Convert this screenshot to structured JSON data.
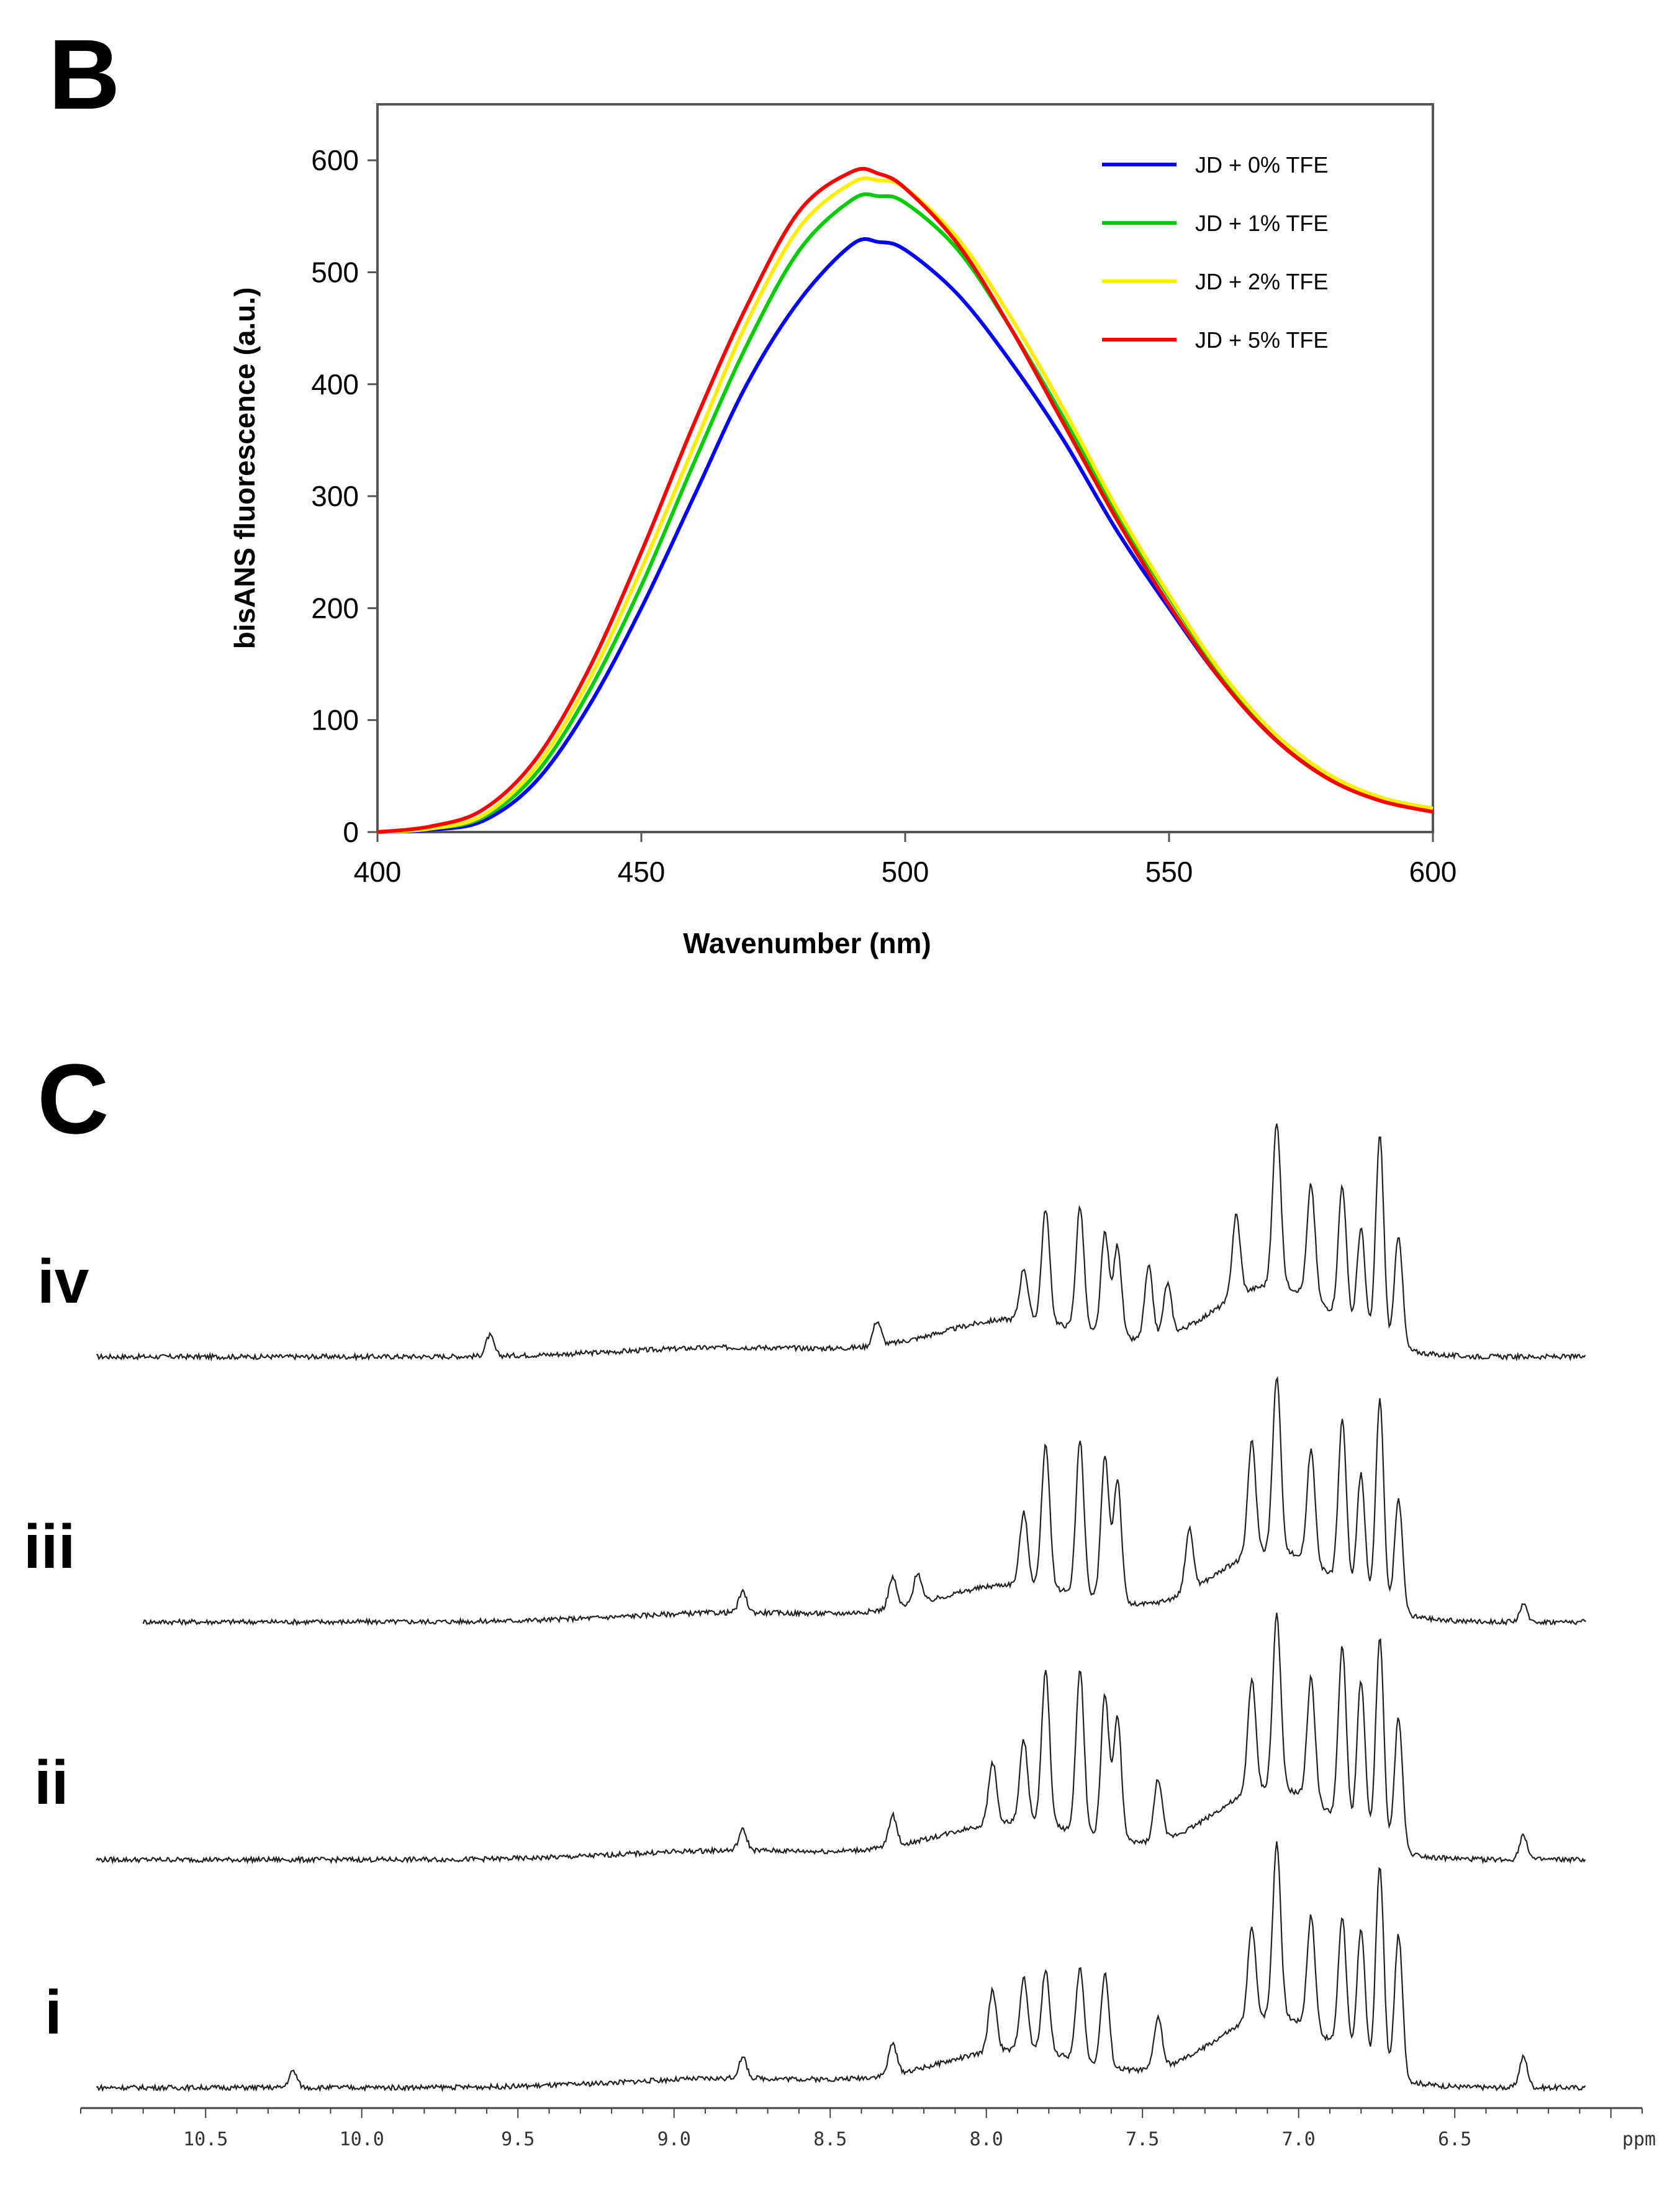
{
  "panels": {
    "b_label": "B",
    "c_label": "C"
  },
  "chart_data": [
    {
      "type": "line",
      "title": "",
      "xlabel": "Wavenumber (nm)",
      "ylabel": "bisANS fluorescence (a.u.)",
      "xlim": [
        400,
        600
      ],
      "ylim": [
        0,
        650
      ],
      "x_ticks": [
        "400",
        "450",
        "500",
        "550",
        "600"
      ],
      "y_ticks": [
        "0",
        "100",
        "200",
        "300",
        "400",
        "500",
        "600"
      ],
      "legend_position": "top-right",
      "series": [
        {
          "name": "JD + 0% TFE",
          "color": "#0000ff",
          "x": [
            400,
            410,
            420,
            430,
            440,
            450,
            460,
            470,
            480,
            490,
            495,
            500,
            510,
            520,
            530,
            540,
            550,
            560,
            570,
            580,
            590,
            600
          ],
          "y": [
            0,
            2,
            10,
            45,
            112,
            200,
            300,
            400,
            475,
            525,
            527,
            520,
            480,
            420,
            350,
            270,
            200,
            135,
            85,
            50,
            30,
            20
          ]
        },
        {
          "name": "JD + 1% TFE",
          "color": "#00cc00",
          "x": [
            400,
            410,
            420,
            430,
            440,
            450,
            460,
            470,
            480,
            490,
            495,
            500,
            510,
            520,
            530,
            540,
            550,
            560,
            570,
            580,
            590,
            600
          ],
          "y": [
            0,
            3,
            13,
            52,
            125,
            220,
            330,
            435,
            520,
            565,
            568,
            562,
            520,
            450,
            370,
            285,
            210,
            140,
            88,
            52,
            31,
            21
          ]
        },
        {
          "name": "JD + 2% TFE",
          "color": "#ffee00",
          "x": [
            400,
            410,
            420,
            430,
            440,
            450,
            460,
            470,
            480,
            490,
            495,
            500,
            510,
            520,
            530,
            540,
            550,
            560,
            570,
            580,
            590,
            600
          ],
          "y": [
            0,
            3,
            15,
            58,
            135,
            235,
            345,
            455,
            540,
            580,
            582,
            575,
            530,
            460,
            378,
            290,
            212,
            142,
            88,
            52,
            31,
            21
          ]
        },
        {
          "name": "JD + 5% TFE",
          "color": "#ff0000",
          "x": [
            400,
            410,
            420,
            430,
            440,
            450,
            460,
            470,
            480,
            490,
            495,
            500,
            510,
            520,
            530,
            540,
            550,
            560,
            570,
            580,
            590,
            600
          ],
          "y": [
            0,
            5,
            20,
            65,
            145,
            250,
            365,
            470,
            555,
            590,
            588,
            575,
            525,
            450,
            365,
            280,
            203,
            135,
            83,
            48,
            28,
            18
          ]
        }
      ]
    },
    {
      "type": "line",
      "title": "",
      "xlabel": "ppm",
      "xlim": [
        10.9,
        5.9
      ],
      "x_ticks": [
        "10.5",
        "10.0",
        "9.5",
        "9.0",
        "8.5",
        "8.0",
        "7.5",
        "7.0",
        "6.5"
      ],
      "tick_values": [
        10.5,
        10.0,
        9.5,
        9.0,
        8.5,
        8.0,
        7.5,
        7.0,
        6.5
      ],
      "x_unit_label": "ppm",
      "spectra": [
        {
          "name": "iv",
          "start_ppm": 10.85,
          "peaks": [
            [
              9.59,
              0.1
            ],
            [
              8.35,
              0.12
            ],
            [
              7.88,
              0.25
            ],
            [
              7.81,
              0.55
            ],
            [
              7.7,
              0.6
            ],
            [
              7.62,
              0.5
            ],
            [
              7.58,
              0.45
            ],
            [
              7.48,
              0.35
            ],
            [
              7.42,
              0.25
            ],
            [
              7.2,
              0.4
            ],
            [
              7.07,
              0.8
            ],
            [
              6.96,
              0.55
            ],
            [
              6.86,
              0.65
            ],
            [
              6.8,
              0.5
            ],
            [
              6.74,
              1.0
            ],
            [
              6.68,
              0.55
            ]
          ]
        },
        {
          "name": "iii",
          "start_ppm": 10.7,
          "peaks": [
            [
              8.78,
              0.1
            ],
            [
              8.3,
              0.15
            ],
            [
              8.22,
              0.15
            ],
            [
              7.88,
              0.35
            ],
            [
              7.81,
              0.7
            ],
            [
              7.7,
              0.75
            ],
            [
              7.62,
              0.7
            ],
            [
              7.58,
              0.6
            ],
            [
              7.35,
              0.3
            ],
            [
              7.15,
              0.55
            ],
            [
              7.07,
              0.85
            ],
            [
              6.96,
              0.55
            ],
            [
              6.86,
              0.8
            ],
            [
              6.8,
              0.6
            ],
            [
              6.74,
              1.0
            ],
            [
              6.68,
              0.55
            ],
            [
              6.28,
              0.08
            ]
          ]
        },
        {
          "name": "ii",
          "start_ppm": 10.85,
          "peaks": [
            [
              8.78,
              0.1
            ],
            [
              8.3,
              0.15
            ],
            [
              7.98,
              0.3
            ],
            [
              7.88,
              0.4
            ],
            [
              7.81,
              0.75
            ],
            [
              7.7,
              0.8
            ],
            [
              7.62,
              0.7
            ],
            [
              7.58,
              0.6
            ],
            [
              7.45,
              0.3
            ],
            [
              7.15,
              0.55
            ],
            [
              7.07,
              0.85
            ],
            [
              6.96,
              0.6
            ],
            [
              6.86,
              0.85
            ],
            [
              6.8,
              0.75
            ],
            [
              6.74,
              1.0
            ],
            [
              6.68,
              0.65
            ],
            [
              6.28,
              0.12
            ]
          ]
        },
        {
          "name": "i",
          "start_ppm": 10.85,
          "peaks": [
            [
              10.22,
              0.08
            ],
            [
              8.78,
              0.1
            ],
            [
              8.3,
              0.15
            ],
            [
              7.98,
              0.3
            ],
            [
              7.88,
              0.35
            ],
            [
              7.81,
              0.4
            ],
            [
              7.7,
              0.45
            ],
            [
              7.62,
              0.45
            ],
            [
              7.45,
              0.25
            ],
            [
              7.15,
              0.45
            ],
            [
              7.07,
              0.85
            ],
            [
              6.96,
              0.55
            ],
            [
              6.86,
              0.65
            ],
            [
              6.8,
              0.65
            ],
            [
              6.74,
              1.0
            ],
            [
              6.68,
              0.7
            ],
            [
              6.28,
              0.15
            ]
          ]
        }
      ]
    }
  ]
}
